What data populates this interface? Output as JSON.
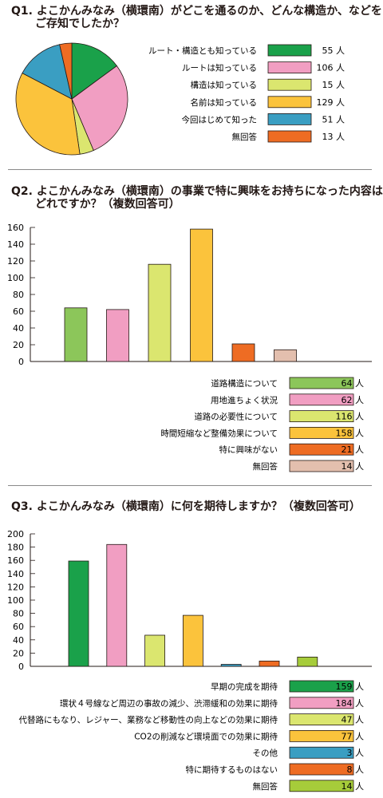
{
  "chart_data": [
    {
      "type": "pie",
      "title_line1": "Q1. よこかんみなみ（横環南）がどこを通るのか、どんな構造か、などを",
      "title_line2": "ご存知でしたか？",
      "categories": [
        "ルート・構造とも知っている",
        "ルートは知っている",
        "構造は知っている",
        "名前は知っている",
        "今回はじめて知った",
        "無回答"
      ],
      "values": [
        55,
        106,
        15,
        129,
        51,
        13
      ],
      "value_labels": [
        "55 人",
        "106 人",
        "15 人",
        "129 人",
        "51 人",
        "13 人"
      ],
      "colors": [
        "#1aa14a",
        "#f19ec2",
        "#dbe66f",
        "#fbc33c",
        "#3a9ec2",
        "#ee6c23"
      ],
      "legend_position": "right"
    },
    {
      "type": "bar",
      "title_line1": "Q2. よこかんみなみ（横環南）の事業で特に興味をお持ちになった内容は",
      "title_line2": "どれですか？（複数回答可）",
      "categories": [
        "道路構造について",
        "用地進ちょく状況",
        "道路の必要性について",
        "時間短縮など整備効果について",
        "特に興味がない",
        "無回答"
      ],
      "values": [
        64,
        62,
        116,
        158,
        21,
        14
      ],
      "value_labels": [
        "64 人",
        "62 人",
        "116 人",
        "158 人",
        "21 人",
        "14 人"
      ],
      "colors": [
        "#8cc65a",
        "#f19ec2",
        "#dbe66f",
        "#fbc33c",
        "#ee6c23",
        "#e3bfae"
      ],
      "ylim": [
        0,
        160
      ],
      "yticks": [
        0,
        20,
        40,
        60,
        80,
        100,
        120,
        140,
        160
      ],
      "legend_position": "bottom-right"
    },
    {
      "type": "bar",
      "title_line1": "Q3. よこかんみなみ（横環南）に何を期待しますか？（複数回答可）",
      "title_line2": "",
      "categories": [
        "早期の完成を期待",
        "環状４号線など周辺の事故の減少、渋滞緩和の効果に期待",
        "代替路にもなり、レジャー、業務など移動性の向上などの効果に期待",
        "CO2の削減など環境面での効果に期待",
        "その他",
        "特に期待するものはない",
        "無回答"
      ],
      "values": [
        159,
        184,
        47,
        77,
        3,
        8,
        14
      ],
      "value_labels": [
        "159 人",
        "184 人",
        "47 人",
        "77 人",
        "3 人",
        "8 人",
        "14 人"
      ],
      "colors": [
        "#1aa14a",
        "#f19ec2",
        "#dbe66f",
        "#fbc33c",
        "#3a9ec2",
        "#ee6c23",
        "#a6cc3a"
      ],
      "ylim": [
        0,
        200
      ],
      "yticks": [
        0,
        20,
        40,
        60,
        80,
        100,
        120,
        140,
        160,
        180,
        200
      ],
      "legend_position": "bottom-right"
    }
  ]
}
